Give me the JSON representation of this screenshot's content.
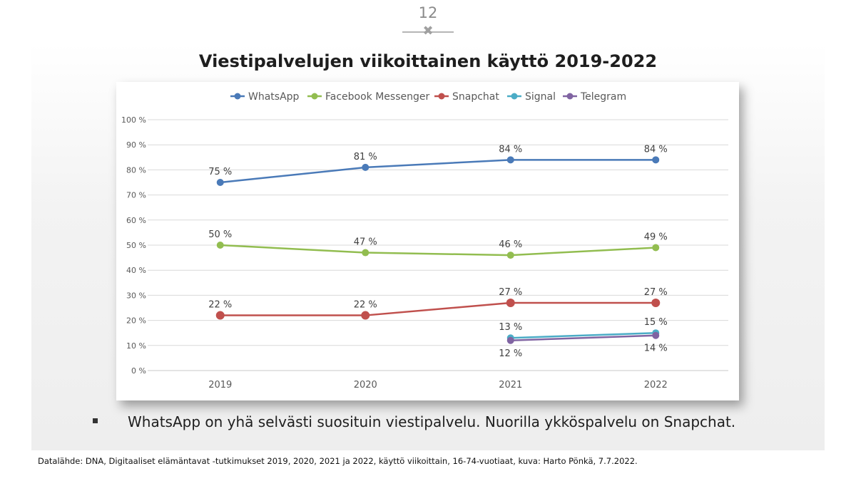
{
  "slide": {
    "page_number": "12",
    "divider_symbol": "✖",
    "title": "Viestipalvelujen viikoittainen käyttö 2019-2022",
    "bullet_text": "WhatsApp on yhä selvästi suosituin viestipalvelu. Nuorilla ykköspalvelu on Snapchat.",
    "source": "Datalähde: DNA, Digitaaliset elämäntavat -tutkimukset 2019, 2020, 2021 ja 2022, käyttö viikoittain, 16-74-vuotiaat, kuva: Harto Pönkä, 7.7.2022."
  },
  "chart_data": {
    "type": "line",
    "title": "",
    "xlabel": "",
    "ylabel": "",
    "categories": [
      "2019",
      "2020",
      "2021",
      "2022"
    ],
    "ylim": [
      0,
      100
    ],
    "y_ticks": [
      0,
      10,
      20,
      30,
      40,
      50,
      60,
      70,
      80,
      90,
      100
    ],
    "y_tick_labels": [
      "0 %",
      "10 %",
      "20 %",
      "30 %",
      "40 %",
      "50 %",
      "60 %",
      "70 %",
      "80 %",
      "90 %",
      "100 %"
    ],
    "grid": true,
    "legend_position": "top",
    "series": [
      {
        "name": "WhatsApp",
        "color": "#4a7ab8",
        "values": [
          75,
          81,
          84,
          84
        ],
        "labels": [
          "75 %",
          "81 %",
          "84 %",
          "84 %"
        ]
      },
      {
        "name": "Facebook Messenger",
        "color": "#92bd50",
        "values": [
          50,
          47,
          46,
          49
        ],
        "labels": [
          "50 %",
          "47 %",
          "46 %",
          "49 %"
        ]
      },
      {
        "name": "Snapchat",
        "color": "#c0504d",
        "values": [
          22,
          22,
          27,
          27
        ],
        "labels": [
          "22 %",
          "22 %",
          "27 %",
          "27 %"
        ]
      },
      {
        "name": "Signal",
        "color": "#4bacc6",
        "values": [
          null,
          null,
          13,
          15
        ],
        "labels": [
          "",
          "",
          "13 %",
          "15 %"
        ]
      },
      {
        "name": "Telegram",
        "color": "#8064a2",
        "values": [
          null,
          null,
          12,
          14
        ],
        "labels": [
          "",
          "",
          "12 %",
          "14 %"
        ]
      }
    ]
  }
}
